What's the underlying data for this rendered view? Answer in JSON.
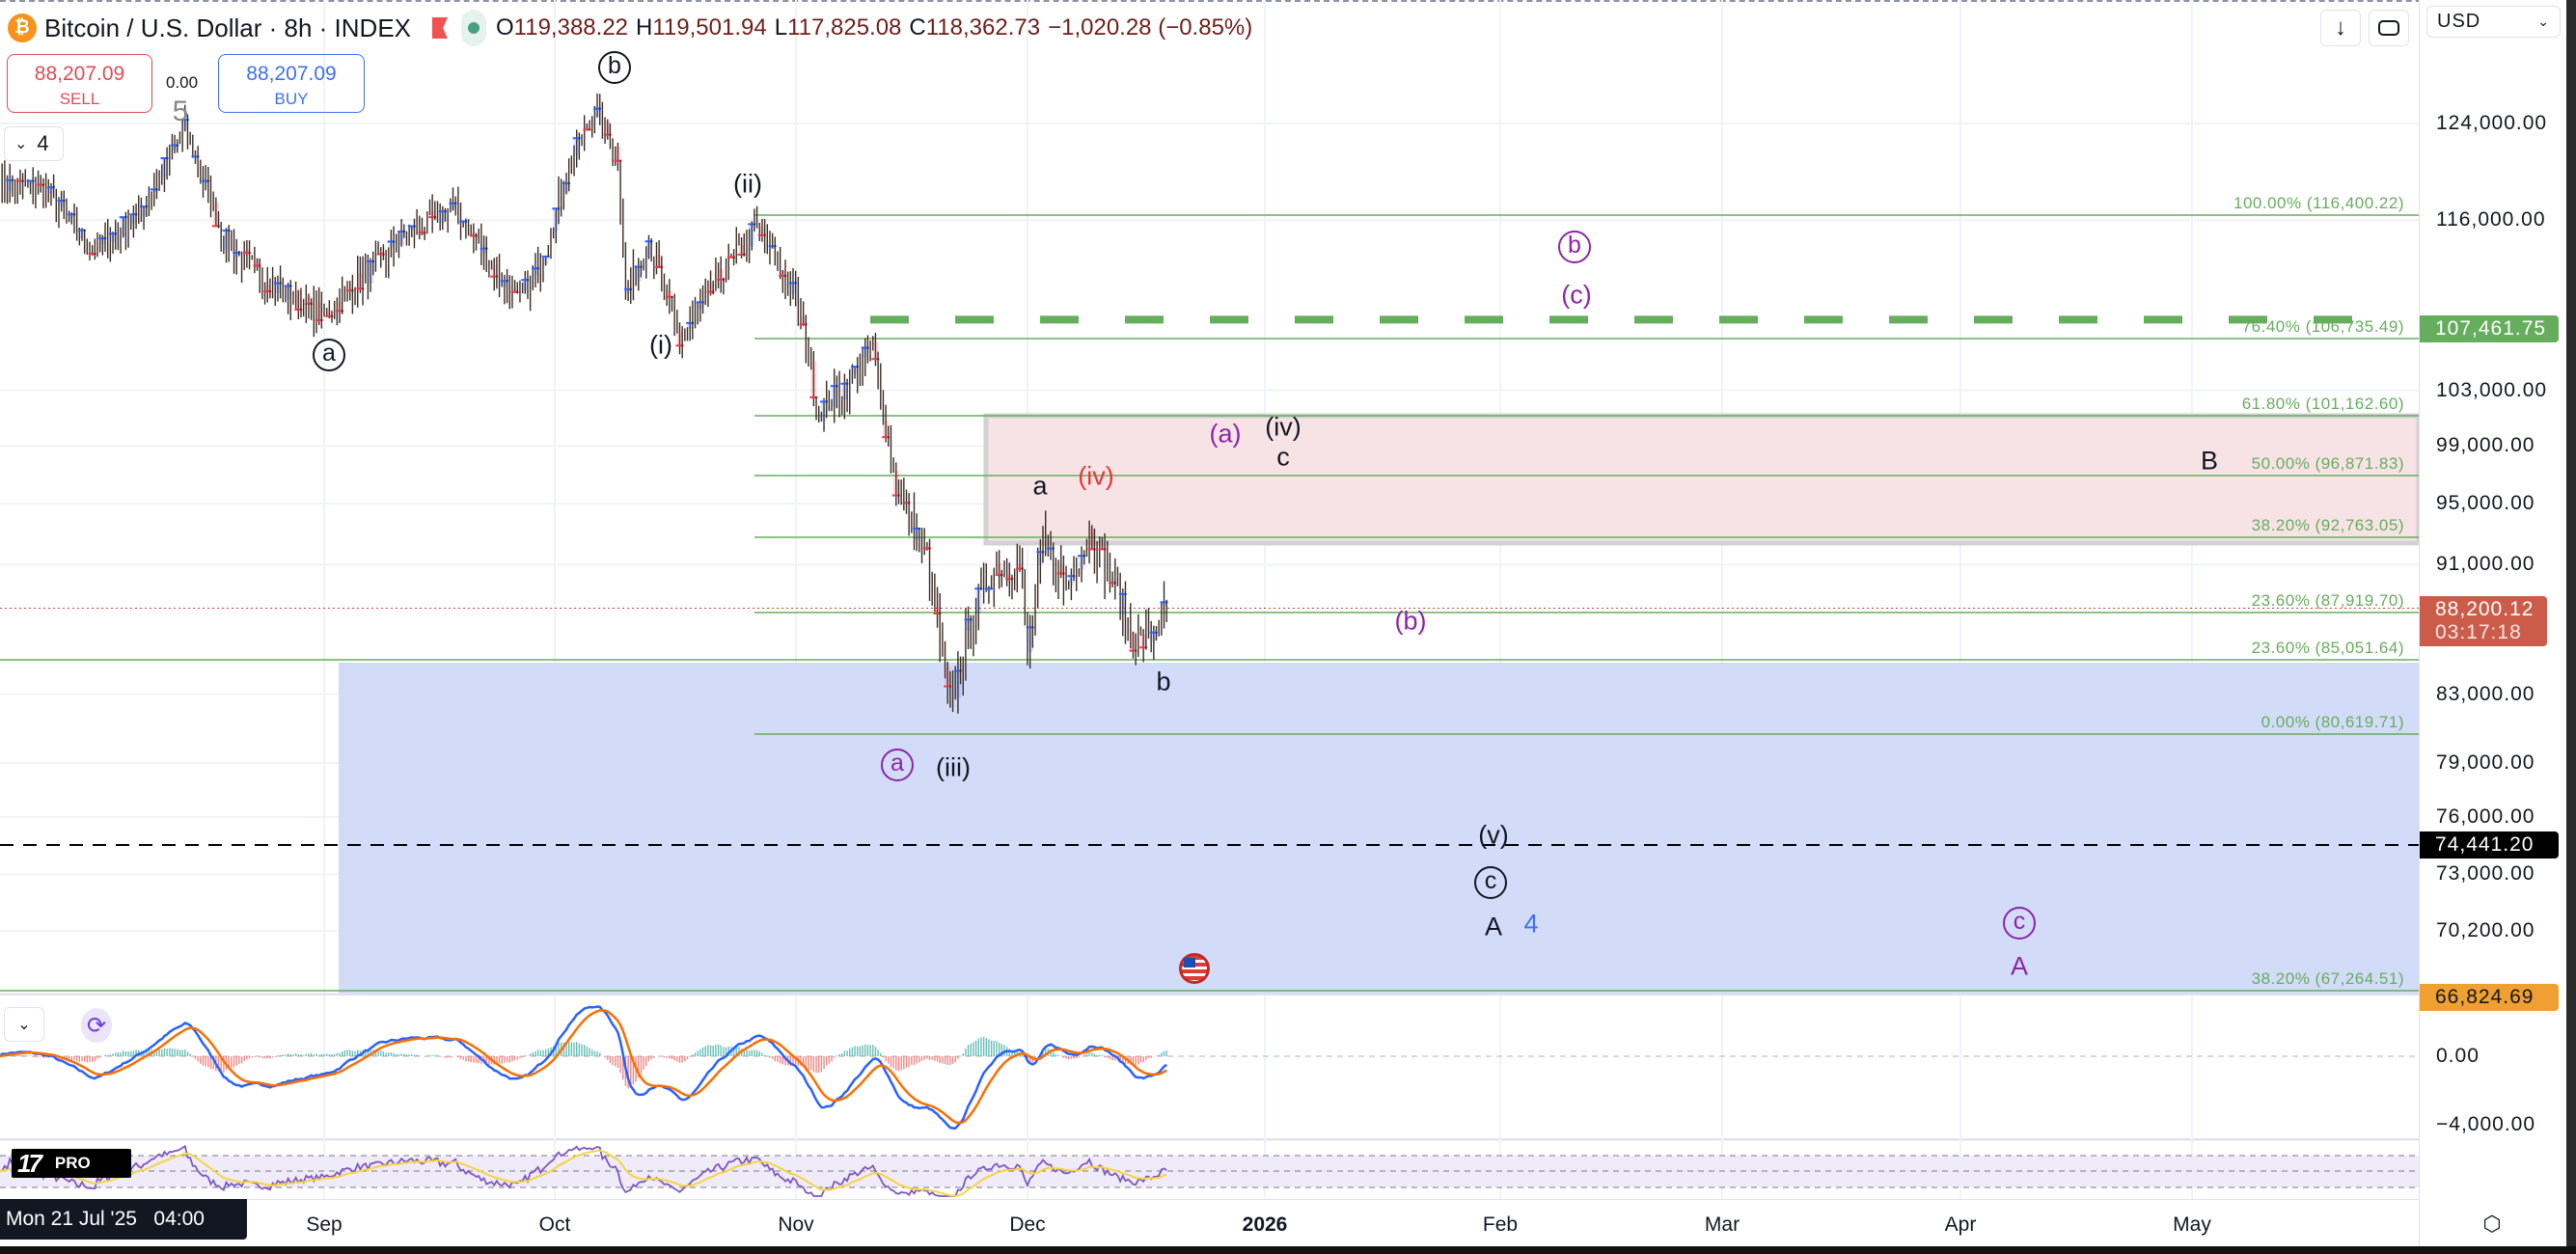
{
  "header": {
    "title": "Bitcoin / U.S. Dollar · 8h · INDEX",
    "ohlc": [
      {
        "k": "O",
        "v": "119,388.22"
      },
      {
        "k": "H",
        "v": "119,501.94"
      },
      {
        "k": "L",
        "v": "117,825.08"
      },
      {
        "k": "C",
        "v": "118,362.73"
      }
    ],
    "change": "−1,020.28 (−0.85%)",
    "currency": "USD"
  },
  "trade": {
    "sell_price": "88,207.09",
    "sell_label": "SELL",
    "buy_price": "88,207.09",
    "buy_label": "BUY",
    "spread": "0.00"
  },
  "legend_toggle": {
    "count": "4"
  },
  "price_axis": {
    "ticks": [
      "124,000.00",
      "116,000.00",
      "103,000.00",
      "99,000.00",
      "95,000.00",
      "91,000.00",
      "83,000.00",
      "79,000.00",
      "76,000.00",
      "73,000.00",
      "70,200.00"
    ],
    "tick_values": [
      124000,
      116000,
      103000,
      99000,
      95000,
      91000,
      83000,
      79000,
      76000,
      73000,
      70200
    ],
    "badges": {
      "green": {
        "text": "107,461.75",
        "value": 107461.75,
        "color": "#66ad5d"
      },
      "last": {
        "text": "88,200.12",
        "countdown": "03:17:18",
        "value": 88200.12,
        "color": "#cc5c4a"
      },
      "black": {
        "text": "74,441.20",
        "value": 74441.2,
        "color": "#000000"
      },
      "orange": {
        "text": "66,824.69",
        "value": 66824.69,
        "color": "#f0a030"
      }
    }
  },
  "fib_levels": [
    {
      "label": "100.00% (116,400.22)",
      "value": 116400.22
    },
    {
      "label": "76.40% (106,735.49)",
      "value": 106735.49
    },
    {
      "label": "61.80% (101,162.60)",
      "value": 101162.6
    },
    {
      "label": "50.00% (96,871.83)",
      "value": 96871.83
    },
    {
      "label": "38.20% (92,763.05)",
      "value": 92763.05
    },
    {
      "label": "23.60% (87,919.70)",
      "value": 87919.7
    },
    {
      "label": "23.60% (85,051.64)",
      "value": 85051.64
    },
    {
      "label": "0.00% (80,619.71)",
      "value": 80619.71
    },
    {
      "label": "38.20% (67,264.51)",
      "value": 67264.51
    }
  ],
  "wave_labels": {
    "five": "5",
    "b_top": "b",
    "ii": "(ii)",
    "a_circ": "a",
    "i": "(i)",
    "a_small": "a",
    "iv_red": "(iv)",
    "a_paren": "(a)",
    "iv_black": "(iv)",
    "c_small": "c",
    "b_small": "b",
    "a_circ_purple": "a",
    "iii": "(iii)",
    "b_paren": "(b)",
    "b_circ_purple": "b",
    "c_paren": "(c)",
    "B": "B",
    "v": "(v)",
    "c_circ": "c",
    "A": "A",
    "four": "4",
    "c_circ_purple": "c",
    "A_purple": "A"
  },
  "macd_axis": [
    "0.00",
    "−4,000.00"
  ],
  "time_axis": {
    "crosshair_label": "Mon 21 Jul '25   04:00",
    "labels": [
      "Sep",
      "Oct",
      "Nov",
      "Dec",
      "2026",
      "Feb",
      "Mar",
      "Apr",
      "May"
    ]
  },
  "logo": {
    "text": "PRO"
  },
  "colors": {
    "fib": "#66ad5d",
    "purple": "#8e24aa",
    "red": "#e53935",
    "blue_zone": "#d2dcf8",
    "pink_zone": "#f7e3e5"
  },
  "price_path": [
    [
      "2025-07-21",
      119000
    ],
    [
      "2025-07-27",
      118500
    ],
    [
      "2025-08-02",
      113500
    ],
    [
      "2025-08-08",
      116500
    ],
    [
      "2025-08-14",
      123500
    ],
    [
      "2025-08-19",
      114500
    ],
    [
      "2025-08-25",
      111000
    ],
    [
      "2025-09-01",
      108500
    ],
    [
      "2025-09-06",
      111500
    ],
    [
      "2025-09-12",
      115000
    ],
    [
      "2025-09-18",
      117000
    ],
    [
      "2025-09-22",
      113000
    ],
    [
      "2025-09-26",
      109500
    ],
    [
      "2025-09-29",
      112500
    ],
    [
      "2025-10-03",
      121000
    ],
    [
      "2025-10-06",
      125000
    ],
    [
      "2025-10-09",
      121500
    ],
    [
      "2025-10-10",
      110000
    ],
    [
      "2025-10-13",
      114500
    ],
    [
      "2025-10-17",
      106500
    ],
    [
      "2025-10-21",
      110500
    ],
    [
      "2025-10-27",
      115500
    ],
    [
      "2025-11-01",
      110000
    ],
    [
      "2025-11-04",
      101500
    ],
    [
      "2025-11-07",
      103000
    ],
    [
      "2025-11-11",
      106000
    ],
    [
      "2025-11-14",
      96000
    ],
    [
      "2025-11-18",
      91500
    ],
    [
      "2025-11-21",
      82000
    ],
    [
      "2025-11-24",
      88000
    ],
    [
      "2025-11-27",
      91000
    ],
    [
      "2025-11-30",
      90800
    ],
    [
      "2025-12-01",
      85500
    ],
    [
      "2025-12-03",
      92500
    ],
    [
      "2025-12-06",
      89500
    ],
    [
      "2025-12-09",
      93000
    ],
    [
      "2025-12-12",
      90000
    ],
    [
      "2025-12-15",
      86000
    ],
    [
      "2025-12-17",
      86500
    ],
    [
      "2025-12-19",
      88200
    ]
  ]
}
